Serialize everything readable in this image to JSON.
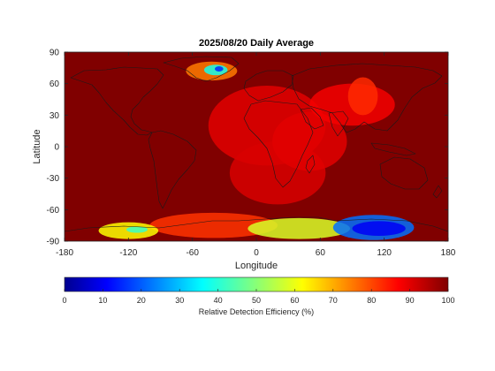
{
  "chart_data": {
    "type": "heatmap",
    "title": "2025/08/20 Daily Average",
    "xlabel": "Longitude",
    "ylabel": "Latitude",
    "xlim": [
      -180,
      180
    ],
    "ylim": [
      -90,
      90
    ],
    "xticks": [
      -180,
      -120,
      -60,
      0,
      60,
      120,
      180
    ],
    "yticks": [
      -90,
      -60,
      -30,
      0,
      30,
      60,
      90
    ],
    "colormap": "jet",
    "colorbar": {
      "label": "Relative Detection Efficiency (%)",
      "range": [
        0,
        100
      ],
      "ticks": [
        0,
        10,
        20,
        30,
        40,
        50,
        60,
        70,
        80,
        90,
        100
      ],
      "placement": "bottom"
    },
    "background_value": 100,
    "regions": [
      {
        "lon": 10,
        "lat": 20,
        "rlon": 55,
        "rlat": 38,
        "value": 90
      },
      {
        "lon": 20,
        "lat": -25,
        "rlon": 45,
        "rlat": 30,
        "value": 91
      },
      {
        "lon": 50,
        "lat": 5,
        "rlon": 35,
        "rlat": 28,
        "value": 90
      },
      {
        "lon": 90,
        "lat": 40,
        "rlon": 40,
        "rlat": 20,
        "value": 88
      },
      {
        "lon": 100,
        "lat": 48,
        "rlon": 14,
        "rlat": 18,
        "value": 83
      },
      {
        "lon": -42,
        "lat": 72,
        "rlon": 24,
        "rlat": 9,
        "value": 75
      },
      {
        "lon": -38,
        "lat": 73,
        "rlon": 11,
        "rlat": 5,
        "value": 38
      },
      {
        "lon": -35,
        "lat": 74,
        "rlon": 4,
        "rlat": 2.5,
        "value": 15
      },
      {
        "lon": -40,
        "lat": -75,
        "rlon": 60,
        "rlat": 12,
        "value": 82
      },
      {
        "lon": -120,
        "lat": -80,
        "rlon": 28,
        "rlat": 8,
        "value": 62
      },
      {
        "lon": -112,
        "lat": -79,
        "rlon": 10,
        "rlat": 3,
        "value": 42
      },
      {
        "lon": 40,
        "lat": -78,
        "rlon": 48,
        "rlat": 10,
        "value": 58
      },
      {
        "lon": 110,
        "lat": -77,
        "rlon": 38,
        "rlat": 12,
        "value": 22
      },
      {
        "lon": 115,
        "lat": -78,
        "rlon": 25,
        "rlat": 7,
        "value": 10
      }
    ]
  }
}
